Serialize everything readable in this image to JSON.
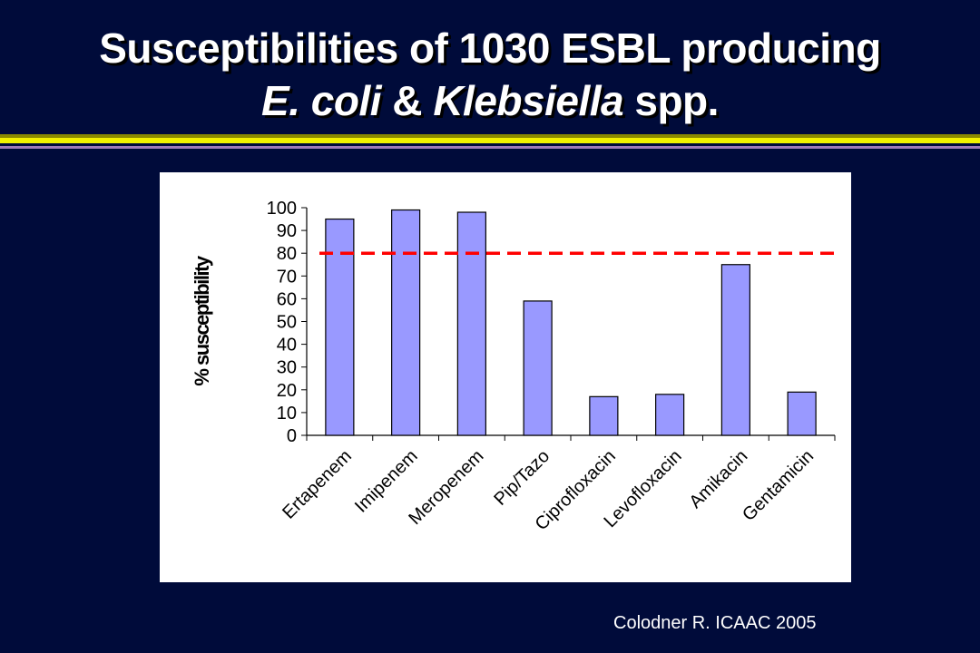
{
  "slide": {
    "title_line1": "Susceptibilities of 1030 ESBL producing",
    "title_line2_part1": "E. coli",
    "title_line2_part2": " & ",
    "title_line2_part3": "Klebsiella",
    "title_line2_part4": " spp.",
    "citation": "Colodner R.  ICAAC 2005"
  },
  "colors": {
    "background": "#000b3a",
    "bar_fill": "#9999ff",
    "reference_line": "#ff0000"
  },
  "chart_data": {
    "type": "bar",
    "categories": [
      "Ertapenem",
      "Imipenem",
      "Meropenem",
      "Pip/Tazo",
      "Ciprofloxacin",
      "Levofloxacin",
      "Amikacin",
      "Gentamicin"
    ],
    "values": [
      95,
      99,
      98,
      59,
      17,
      18,
      75,
      19
    ],
    "ylabel": "% susceptibility",
    "ylim": [
      0,
      100
    ],
    "yticks": [
      0,
      10,
      20,
      30,
      40,
      50,
      60,
      70,
      80,
      90,
      100
    ],
    "reference_line": 80,
    "grid": false,
    "legend": "none"
  }
}
